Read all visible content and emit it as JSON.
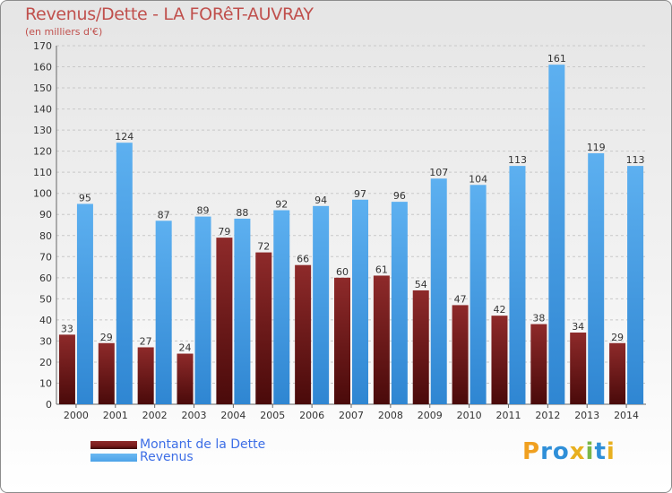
{
  "chart_data": {
    "type": "bar",
    "title": "Revenus/Dette - LA FORêT-AUVRAY",
    "subtitle": "(en milliers d'€)",
    "categories": [
      "2000",
      "2001",
      "2002",
      "2003",
      "2004",
      "2005",
      "2006",
      "2007",
      "2008",
      "2009",
      "2010",
      "2011",
      "2012",
      "2013",
      "2014"
    ],
    "series": [
      {
        "name": "Montant de la Dette",
        "color": "#7a1c1c",
        "values": [
          33,
          29,
          27,
          24,
          79,
          72,
          66,
          60,
          61,
          54,
          47,
          42,
          38,
          34,
          29
        ]
      },
      {
        "name": "Revenus",
        "color": "#4da3e8",
        "values": [
          95,
          124,
          87,
          89,
          88,
          92,
          94,
          97,
          96,
          107,
          104,
          113,
          161,
          119,
          113
        ]
      }
    ],
    "ylim": [
      0,
      170
    ],
    "ytick_step": 10,
    "grid": true,
    "legend": "bottom-left"
  },
  "logo": {
    "letters": [
      "P",
      "r",
      "o",
      "x",
      "i",
      "t",
      "i"
    ],
    "colors": [
      "#f0a020",
      "#2f8fd8",
      "#2f8fd8",
      "#e8b020",
      "#7ab648",
      "#2f8fd8",
      "#e8b020"
    ]
  }
}
